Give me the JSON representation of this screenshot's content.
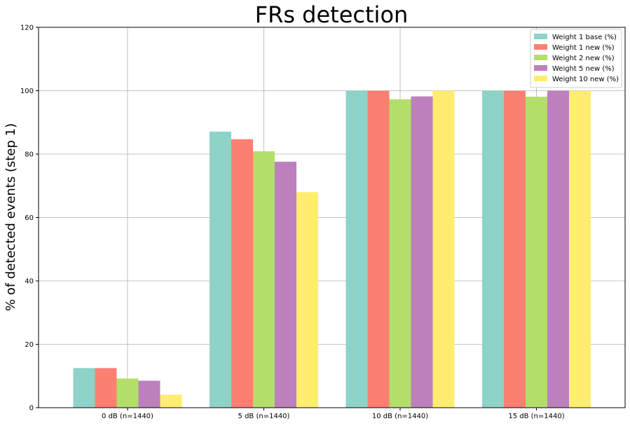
{
  "chart_data": {
    "type": "bar",
    "title": "FRs detection",
    "xlabel": "",
    "ylabel": "% of detected events (step 1)",
    "ylim": [
      0,
      120
    ],
    "yticks": [
      0,
      20,
      40,
      60,
      80,
      100,
      120
    ],
    "grid": true,
    "legend_position": "top-right",
    "categories": [
      "0 dB (n=1440)",
      "5 dB (n=1440)",
      "10 dB (n=1440)",
      "15 dB (n=1440)"
    ],
    "series": [
      {
        "name": "Weight 1 base (%)",
        "color": "#8dd3c7",
        "values": [
          12.5,
          87.1,
          100,
          100
        ]
      },
      {
        "name": "Weight 1 new (%)",
        "color": "#fb8072",
        "values": [
          12.5,
          84.7,
          100,
          100
        ]
      },
      {
        "name": "Weight 2 new (%)",
        "color": "#b3de69",
        "values": [
          9.2,
          80.9,
          97.3,
          98.1
        ]
      },
      {
        "name": "Weight 5 new (%)",
        "color": "#bc80bd",
        "values": [
          8.5,
          77.6,
          98.2,
          100
        ]
      },
      {
        "name": "Weight 10 new (%)",
        "color": "#ffed6f",
        "values": [
          4.1,
          68.0,
          100,
          100
        ]
      }
    ]
  }
}
